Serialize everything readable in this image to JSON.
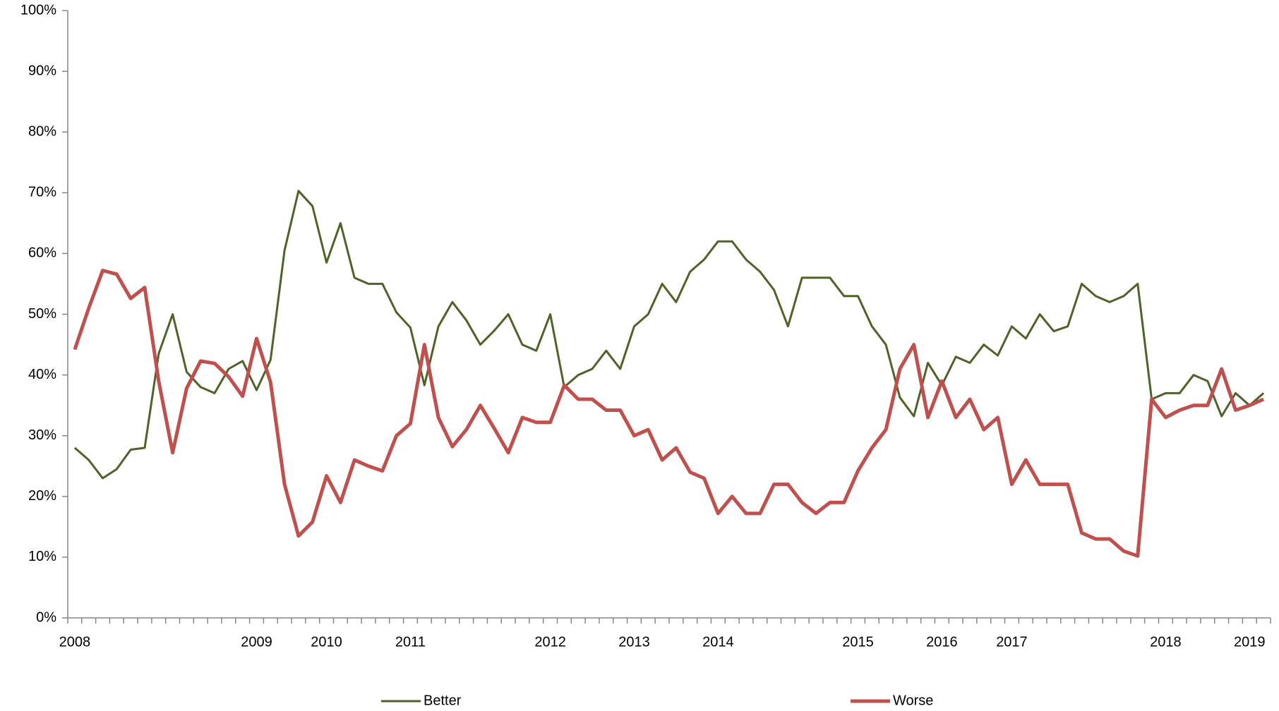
{
  "chart_data": {
    "type": "line",
    "categories": [
      "2008",
      null,
      null,
      null,
      null,
      null,
      null,
      null,
      null,
      null,
      null,
      null,
      null,
      "2009",
      null,
      null,
      null,
      null,
      "2010",
      null,
      null,
      null,
      null,
      null,
      "2011",
      null,
      null,
      null,
      null,
      null,
      null,
      null,
      null,
      null,
      "2012",
      null,
      null,
      null,
      null,
      null,
      "2013",
      null,
      null,
      null,
      null,
      null,
      "2014",
      null,
      null,
      null,
      null,
      null,
      null,
      null,
      null,
      null,
      "2015",
      null,
      null,
      null,
      null,
      null,
      "2016",
      null,
      null,
      null,
      null,
      "2017",
      null,
      null,
      null,
      null,
      null,
      null,
      null,
      null,
      null,
      null,
      "2018",
      null,
      null,
      null,
      null,
      null,
      "2019",
      null
    ],
    "series": [
      {
        "name": "Better",
        "color": "#4f6228",
        "values": [
          28,
          26,
          23,
          24.5,
          27.7,
          28,
          43.5,
          50,
          40.5,
          38,
          37,
          41,
          42.3,
          37.5,
          42.5,
          60.5,
          70.3,
          67.8,
          58.5,
          65,
          56,
          55,
          55,
          50.3,
          47.8,
          38.3,
          48,
          52,
          49,
          45,
          47.3,
          50,
          45,
          44,
          50,
          38,
          40,
          41,
          44,
          41,
          48,
          50,
          55,
          52,
          57,
          59,
          62,
          62,
          59,
          57,
          54,
          48,
          56,
          56,
          56,
          53,
          53,
          48,
          45,
          36.3,
          33.2,
          42,
          38.3,
          43,
          42,
          45,
          43.2,
          48,
          46,
          50,
          47.2,
          48,
          55,
          53,
          52,
          53,
          55,
          36,
          37,
          37,
          40,
          39,
          33.2,
          37,
          35,
          37
        ]
      },
      {
        "name": "Worse",
        "color": "#c0504d",
        "values": [
          44.2,
          51,
          57.2,
          56.6,
          52.6,
          54.4,
          39,
          27.2,
          37.8,
          42.3,
          41.9,
          39.7,
          36.5,
          46,
          38.8,
          22,
          13.5,
          15.8,
          23.4,
          19,
          26,
          25,
          24.2,
          30,
          32,
          45,
          33,
          28.2,
          31,
          35,
          31.2,
          27.2,
          33,
          32.2,
          32.2,
          38.3,
          36,
          36,
          34.2,
          34.2,
          30,
          31,
          26,
          28,
          24,
          23,
          17.2,
          20,
          17.2,
          17.2,
          22,
          22,
          19,
          17.2,
          19,
          19,
          24.2,
          28,
          31,
          41,
          45,
          33,
          39,
          33,
          36,
          31,
          33,
          22,
          26,
          22,
          22,
          22,
          14,
          13,
          13,
          11,
          10.2,
          36,
          33,
          34.2,
          35,
          35,
          41,
          34.2,
          35,
          36
        ]
      }
    ],
    "ylim": [
      0,
      100
    ],
    "yticks": [
      {
        "value": 0,
        "label": "0%"
      },
      {
        "value": 10,
        "label": "10%"
      },
      {
        "value": 20,
        "label": "20%"
      },
      {
        "value": 30,
        "label": "30%"
      },
      {
        "value": 40,
        "label": "40%"
      },
      {
        "value": 50,
        "label": "50%"
      },
      {
        "value": 60,
        "label": "60%"
      },
      {
        "value": 70,
        "label": "70%"
      },
      {
        "value": 80,
        "label": "80%"
      },
      {
        "value": 90,
        "label": "90%"
      },
      {
        "value": 100,
        "label": "100%"
      }
    ],
    "grid": false,
    "legend": "bottom"
  }
}
